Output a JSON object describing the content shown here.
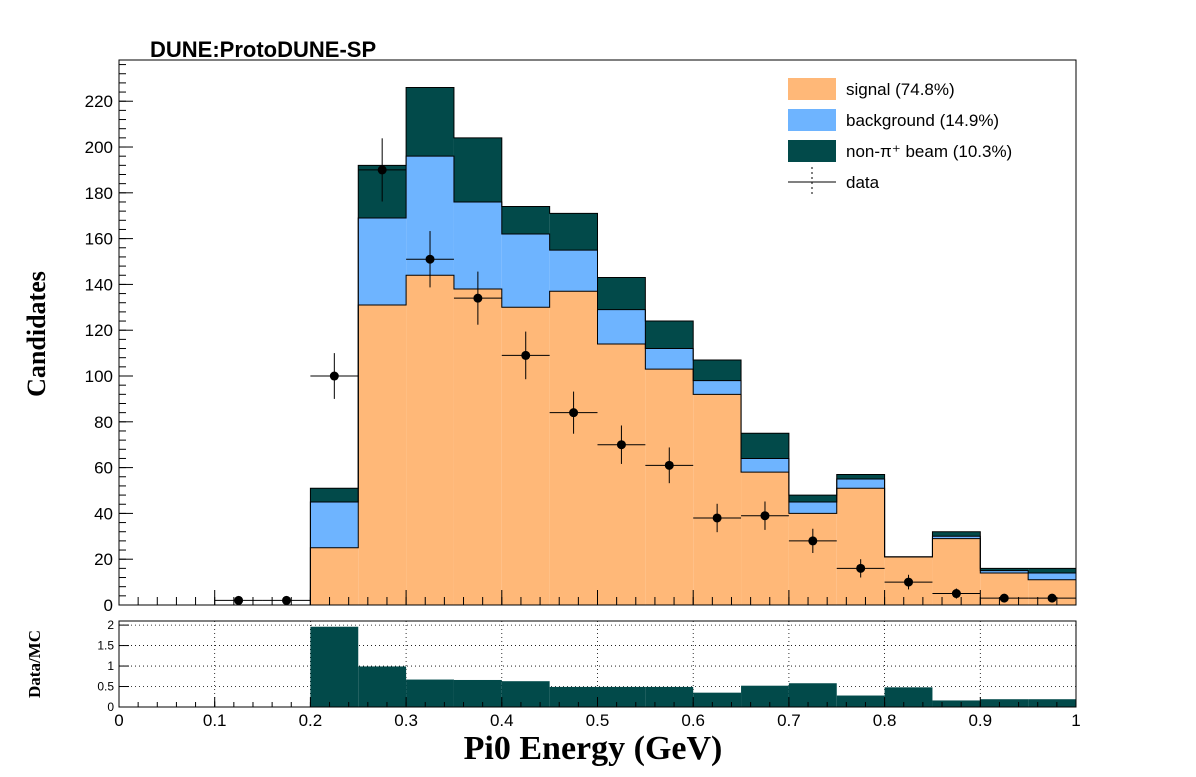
{
  "chart_data": {
    "type": "bar",
    "title": "DUNE:ProtoDUNE-SP",
    "xlabel": "Pi0 Energy (GeV)",
    "ylabel": "Candidates",
    "ratio_ylabel": "Data/MC",
    "xlim": [
      0,
      1
    ],
    "ylim": [
      0,
      238
    ],
    "ratio_ylim": [
      0,
      2.1
    ],
    "x_ticks": [
      {
        "value": 0,
        "label": "0"
      },
      {
        "value": 0.1,
        "label": "0.1"
      },
      {
        "value": 0.2,
        "label": "0.2"
      },
      {
        "value": 0.3,
        "label": "0.3"
      },
      {
        "value": 0.4,
        "label": "0.4"
      },
      {
        "value": 0.5,
        "label": "0.5"
      },
      {
        "value": 0.6,
        "label": "0.6"
      },
      {
        "value": 0.7,
        "label": "0.7"
      },
      {
        "value": 0.8,
        "label": "0.8"
      },
      {
        "value": 0.9,
        "label": "0.9"
      },
      {
        "value": 1,
        "label": "1"
      }
    ],
    "y_ticks": [
      {
        "value": 0,
        "label": "0"
      },
      {
        "value": 20,
        "label": "20"
      },
      {
        "value": 40,
        "label": "40"
      },
      {
        "value": 60,
        "label": "60"
      },
      {
        "value": 80,
        "label": "80"
      },
      {
        "value": 100,
        "label": "100"
      },
      {
        "value": 120,
        "label": "120"
      },
      {
        "value": 140,
        "label": "140"
      },
      {
        "value": 160,
        "label": "160"
      },
      {
        "value": 180,
        "label": "180"
      },
      {
        "value": 200,
        "label": "200"
      },
      {
        "value": 220,
        "label": "220"
      }
    ],
    "ratio_ticks": [
      {
        "value": 0,
        "label": "0"
      },
      {
        "value": 0.5,
        "label": "0.5"
      },
      {
        "value": 1,
        "label": "1"
      },
      {
        "value": 1.5,
        "label": "1.5"
      },
      {
        "value": 2,
        "label": "2"
      }
    ],
    "bin_edges": [
      0,
      0.05,
      0.1,
      0.15,
      0.2,
      0.25,
      0.3,
      0.35,
      0.4,
      0.45,
      0.5,
      0.55,
      0.6,
      0.65,
      0.7,
      0.75,
      0.8,
      0.85,
      0.9,
      0.95,
      1.0
    ],
    "stack": [
      {
        "name": "signal (74.8%)",
        "color": "#ffb878",
        "values": [
          0,
          0,
          0,
          0,
          25,
          131,
          144,
          138,
          130,
          137,
          114,
          103,
          92,
          58,
          40,
          51,
          21,
          29,
          14,
          11
        ]
      },
      {
        "name": "background (14.9%)",
        "color": "#6eb4ff",
        "values": [
          0,
          0,
          0,
          0,
          20,
          38,
          52,
          38,
          32,
          18,
          15,
          9,
          6,
          6,
          5,
          4,
          0,
          1,
          1,
          3
        ]
      },
      {
        "name": "non-π⁺ beam (10.3%)",
        "color": "#024a4a",
        "values": [
          0,
          0,
          0,
          0,
          6,
          23,
          30,
          28,
          12,
          16,
          14,
          12,
          9,
          11,
          3,
          2,
          0,
          2,
          1,
          2
        ]
      }
    ],
    "data_series": {
      "name": "data",
      "x": [
        0.125,
        0.175,
        0.225,
        0.275,
        0.325,
        0.375,
        0.425,
        0.475,
        0.525,
        0.575,
        0.625,
        0.675,
        0.725,
        0.775,
        0.825,
        0.875,
        0.925,
        0.975
      ],
      "y": [
        2,
        2,
        100,
        190,
        151,
        134,
        109,
        84,
        70,
        61,
        38,
        39,
        28,
        16,
        10,
        5,
        3,
        3
      ],
      "yerr": [
        1.4,
        1.4,
        10,
        13.8,
        12.3,
        11.6,
        10.4,
        9.2,
        8.4,
        7.8,
        6.2,
        6.2,
        5.3,
        4,
        3.2,
        2.2,
        1.7,
        1.7
      ]
    },
    "ratio": {
      "color": "#024a4a",
      "values": [
        0,
        0,
        0,
        0,
        1.96,
        0.99,
        0.67,
        0.66,
        0.63,
        0.49,
        0.49,
        0.49,
        0.35,
        0.52,
        0.58,
        0.28,
        0.48,
        0.16,
        0.19,
        0.19
      ]
    },
    "legend": {
      "placement": "top-right"
    },
    "ratio_grid": true
  }
}
